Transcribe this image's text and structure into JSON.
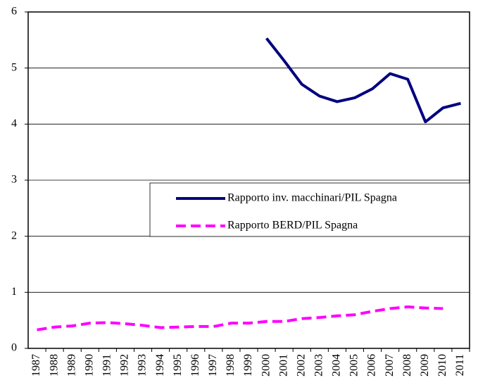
{
  "chart_data": {
    "type": "line",
    "categories": [
      "1987",
      "1988",
      "1989",
      "1990",
      "1991",
      "1992",
      "1993",
      "1994",
      "1995",
      "1996",
      "1997",
      "1998",
      "1999",
      "2000",
      "2001",
      "2002",
      "2003",
      "2004",
      "2005",
      "2006",
      "2007",
      "2008",
      "2009",
      "2010",
      "2011"
    ],
    "series": [
      {
        "name": "Rapporto inv. macchinari/PIL Spagna",
        "color": "#000080",
        "style": "solid",
        "values": [
          null,
          null,
          null,
          null,
          null,
          null,
          null,
          null,
          null,
          null,
          null,
          null,
          null,
          5.53,
          5.13,
          4.71,
          4.5,
          4.4,
          4.47,
          4.63,
          4.9,
          4.8,
          4.04,
          4.29,
          4.37
        ]
      },
      {
        "name": "Rapporto BERD/PIL Spagna",
        "color": "#ff00ff",
        "style": "dashed",
        "values": [
          0.33,
          0.38,
          0.4,
          0.45,
          0.46,
          0.44,
          0.41,
          0.37,
          0.38,
          0.39,
          0.39,
          0.45,
          0.45,
          0.48,
          0.48,
          0.53,
          0.55,
          0.58,
          0.6,
          0.66,
          0.71,
          0.74,
          0.72,
          0.71,
          null
        ]
      }
    ],
    "ylim": [
      0,
      6
    ],
    "yticks": [
      0,
      1,
      2,
      3,
      4,
      5,
      6
    ],
    "grid": true,
    "legend": "center-right"
  }
}
